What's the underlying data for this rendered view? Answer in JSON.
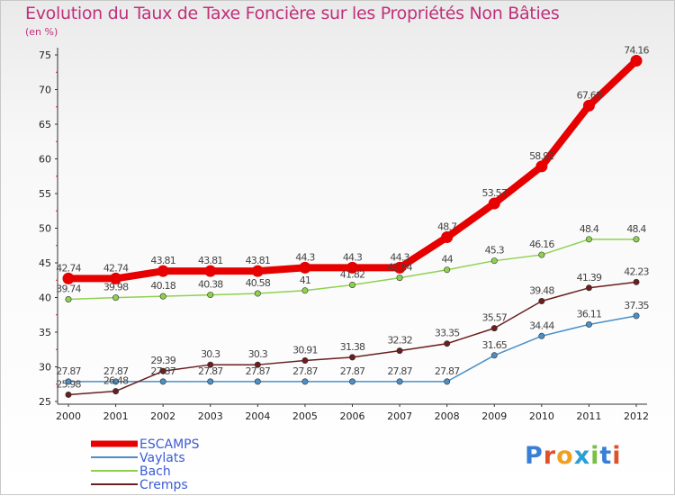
{
  "title": "Evolution du Taux de Taxe Foncière sur les Propriétés Non Bâties",
  "subtitle": "(en %)",
  "logo_text": "Proxiti",
  "chart_data": {
    "type": "line",
    "title": "Evolution du Taux de Taxe Foncière sur les Propriétés Non Bâties",
    "ylabel": "(en %)",
    "xlabel": "",
    "x": [
      "2000",
      "2001",
      "2002",
      "2003",
      "2004",
      "2005",
      "2006",
      "2007",
      "2008",
      "2009",
      "2010",
      "2011",
      "2012"
    ],
    "ylim": [
      25,
      75
    ],
    "yticks": [
      25,
      30,
      35,
      40,
      45,
      50,
      55,
      60,
      65,
      70,
      75
    ],
    "grid": false,
    "legend_position": "bottom-left",
    "series": [
      {
        "name": "ESCAMPS",
        "color": "#e60000",
        "values": [
          42.74,
          42.74,
          43.81,
          43.81,
          43.81,
          44.3,
          44.3,
          44.3,
          48.7,
          53.57,
          58.92,
          67.68,
          74.16
        ],
        "labels": [
          "42.74",
          "42.74",
          "43.81",
          "43.81",
          "43.81",
          "44.3",
          "44.3",
          "44.3",
          "48.7",
          "53.57",
          "58.92",
          "67.68",
          "74.16"
        ]
      },
      {
        "name": "Vaylats",
        "color": "#4a8fc7",
        "values": [
          27.87,
          27.87,
          27.87,
          27.87,
          27.87,
          27.87,
          27.87,
          27.87,
          27.87,
          31.65,
          34.44,
          36.11,
          37.35
        ],
        "labels": [
          "27.87",
          "27.87",
          "27.87",
          "27.87",
          "27.87",
          "27.87",
          "27.87",
          "27.87",
          "27.87",
          "31.65",
          "34.44",
          "36.11",
          "37.35"
        ]
      },
      {
        "name": "Bach",
        "color": "#8fd14f",
        "values": [
          39.74,
          39.98,
          40.18,
          40.38,
          40.58,
          41,
          41.82,
          42.84,
          44,
          45.3,
          46.16,
          48.4,
          48.4
        ],
        "labels": [
          "39.74",
          "39.98",
          "40.18",
          "40.38",
          "40.58",
          "41",
          "41.82",
          "42.84",
          "44",
          "45.3",
          "46.16",
          "48.4",
          "48.4"
        ]
      },
      {
        "name": "Cremps",
        "color": "#6b1e1e",
        "values": [
          25.98,
          26.48,
          29.39,
          30.3,
          30.3,
          30.91,
          31.38,
          32.32,
          33.35,
          35.57,
          39.48,
          41.39,
          42.23
        ],
        "labels": [
          "25.98",
          "26.48",
          "29.39",
          "30.3",
          "30.3",
          "30.91",
          "31.38",
          "32.32",
          "33.35",
          "35.57",
          "39.48",
          "41.39",
          "42.23"
        ]
      }
    ]
  }
}
